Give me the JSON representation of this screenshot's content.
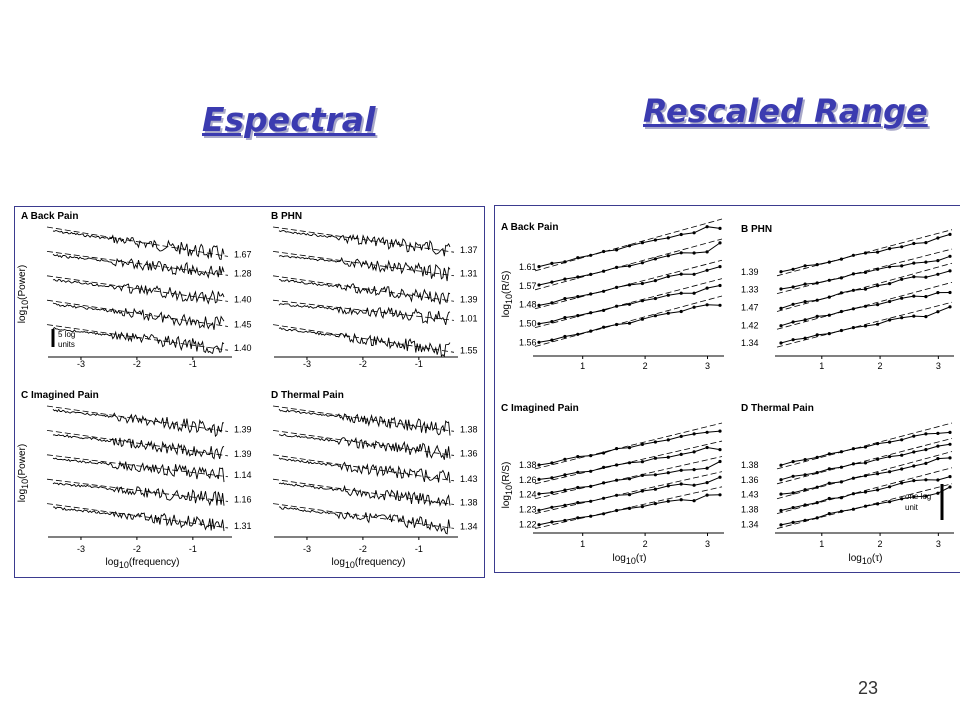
{
  "slide": {
    "title_left": "Espectral",
    "title_right": "Rescaled Range",
    "page_number": "23"
  },
  "colors": {
    "title": "#3b3bb0",
    "title_shadow": "#a9a9c9",
    "frame": "#3b3b8f"
  },
  "chart_data": [
    {
      "type": "line",
      "group": "Espectral",
      "panels": [
        {
          "id": "A",
          "title": "A Back Pain",
          "ylabel": "log10(Power)",
          "xlabel": "",
          "xticks": [
            "-3",
            "-2",
            "-1"
          ],
          "xlim": [
            -3.5,
            -0.3
          ],
          "slopes": [
            "1.67",
            "1.28",
            "1.40",
            "1.45",
            "1.40"
          ],
          "scale_bar": [
            "5 log",
            "units"
          ]
        },
        {
          "id": "B",
          "title": "B PHN",
          "ylabel": "",
          "xlabel": "",
          "xticks": [
            "-3",
            "-2",
            "-1"
          ],
          "xlim": [
            -3.5,
            -0.3
          ],
          "slopes": [
            "1.37",
            "1.31",
            "1.39",
            "1.01",
            "1.55"
          ],
          "scale_bar": []
        },
        {
          "id": "C",
          "title": "C Imagined Pain",
          "ylabel": "log10(Power)",
          "xlabel": "log10(frequency)",
          "xticks": [
            "-3",
            "-2",
            "-1"
          ],
          "xlim": [
            -3.5,
            -0.3
          ],
          "slopes": [
            "1.39",
            "1.39",
            "1.14",
            "1.16",
            "1.31"
          ],
          "scale_bar": []
        },
        {
          "id": "D",
          "title": "D Thermal Pain",
          "ylabel": "",
          "xlabel": "log10(frequency)",
          "xticks": [
            "-3",
            "-2",
            "-1"
          ],
          "xlim": [
            -3.5,
            -0.3
          ],
          "slopes": [
            "1.38",
            "1.36",
            "1.43",
            "1.38",
            "1.34"
          ],
          "scale_bar": []
        }
      ]
    },
    {
      "type": "line",
      "group": "Rescaled Range",
      "panels": [
        {
          "id": "A",
          "title": "A Back Pain",
          "ylabel": "log10(R/S)",
          "xlabel": "",
          "xticks": [
            "1",
            "2",
            "3"
          ],
          "xlim": [
            0.3,
            3.2
          ],
          "exponents": [
            "1.61",
            "1.57",
            "1.48",
            "1.50",
            "1.56"
          ],
          "scale_bar": []
        },
        {
          "id": "B",
          "title": "B PHN",
          "ylabel": "",
          "xlabel": "",
          "xticks": [
            "1",
            "2",
            "3"
          ],
          "xlim": [
            0.3,
            3.2
          ],
          "exponents": [
            "1.39",
            "1.33",
            "1.47",
            "1.42",
            "1.34"
          ],
          "scale_bar": []
        },
        {
          "id": "C",
          "title": "C Imagined Pain",
          "ylabel": "log10(R/S)",
          "xlabel": "log10(τ)",
          "xticks": [
            "1",
            "2",
            "3"
          ],
          "xlim": [
            0.3,
            3.2
          ],
          "exponents": [
            "1.38",
            "1.26",
            "1.24",
            "1.23",
            "1.22"
          ],
          "scale_bar": []
        },
        {
          "id": "D",
          "title": "D Thermal Pain",
          "ylabel": "",
          "xlabel": "log10(τ)",
          "xticks": [
            "1",
            "2",
            "3"
          ],
          "xlim": [
            0.3,
            3.2
          ],
          "exponents": [
            "1.38",
            "1.36",
            "1.43",
            "1.38",
            "1.34"
          ],
          "scale_bar": [
            "one log",
            "unit"
          ]
        }
      ]
    }
  ]
}
